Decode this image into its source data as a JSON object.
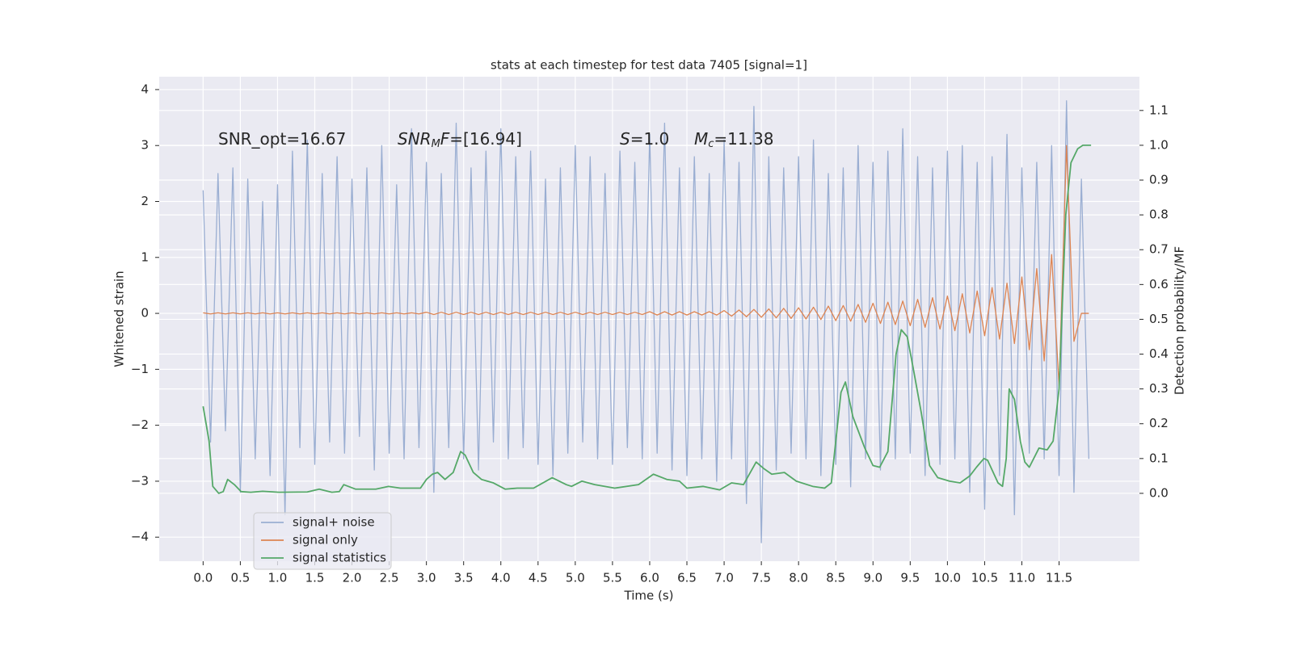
{
  "chart_data": {
    "type": "line",
    "title": "stats at each timestep for test data 7405 [signal=1]",
    "x_label": "Time (s)",
    "y_label": "Whitened strain",
    "y2_label": "Detection probability/MF",
    "annotations": [
      [
        "SNR_opt=16.67"
      ],
      [
        "SNR",
        "M",
        "F",
        "=[16.94]"
      ],
      [
        "S",
        "=1.0"
      ],
      [
        "M",
        "c",
        "=11.38"
      ]
    ],
    "x": [
      0.0,
      0.1,
      0.2,
      0.3,
      0.4,
      0.5,
      0.6,
      0.7,
      0.8,
      0.9,
      1.0,
      1.1,
      1.2,
      1.3,
      1.4,
      1.5,
      1.6,
      1.7,
      1.8,
      1.9,
      2.0,
      2.1,
      2.2,
      2.3,
      2.4,
      2.5,
      2.6,
      2.7,
      2.8,
      2.9,
      3.0,
      3.1,
      3.2,
      3.3,
      3.4,
      3.5,
      3.6,
      3.7,
      3.8,
      3.9,
      4.0,
      4.1,
      4.2,
      4.3,
      4.4,
      4.5,
      4.6,
      4.7,
      4.8,
      4.9,
      5.0,
      5.1,
      5.2,
      5.3,
      5.4,
      5.5,
      5.6,
      5.7,
      5.8,
      5.9,
      6.0,
      6.1,
      6.2,
      6.3,
      6.4,
      6.5,
      6.6,
      6.7,
      6.8,
      6.9,
      7.0,
      7.1,
      7.2,
      7.3,
      7.4,
      7.5,
      7.6,
      7.7,
      7.8,
      7.9,
      8.0,
      8.1,
      8.2,
      8.3,
      8.4,
      8.5,
      8.6,
      8.7,
      8.8,
      8.9,
      9.0,
      9.1,
      9.2,
      9.3,
      9.4,
      9.5,
      9.6,
      9.7,
      9.8,
      9.9,
      10.0,
      10.1,
      10.2,
      10.3,
      10.4,
      10.5,
      10.6,
      10.7,
      10.8,
      10.9,
      11.0,
      11.1,
      11.2,
      11.3,
      11.4,
      11.5,
      11.6,
      11.7,
      11.8,
      11.9
    ],
    "series": [
      {
        "name": "signal+ noise",
        "color": "#9aaed2",
        "values": [
          2.2,
          -2.3,
          2.5,
          -2.1,
          2.6,
          -3.2,
          2.4,
          -2.6,
          2.0,
          -2.9,
          2.3,
          -3.6,
          2.9,
          -2.4,
          3.1,
          -2.7,
          2.5,
          -2.3,
          2.8,
          -2.5,
          2.4,
          -2.2,
          2.6,
          -2.8,
          3.0,
          -2.5,
          2.3,
          -2.6,
          3.3,
          -2.4,
          2.7,
          -3.2,
          2.5,
          -2.4,
          3.4,
          -2.6,
          2.6,
          -2.8,
          2.9,
          -2.3,
          3.3,
          -2.6,
          2.8,
          -2.4,
          2.9,
          -2.7,
          2.4,
          -2.9,
          2.6,
          -2.5,
          3.0,
          -2.3,
          2.8,
          -2.6,
          2.5,
          -2.7,
          2.9,
          -2.4,
          2.7,
          -2.6,
          3.2,
          -2.5,
          3.4,
          -2.8,
          2.6,
          -2.9,
          2.8,
          -2.6,
          2.5,
          -3.0,
          3.1,
          -2.6,
          2.7,
          -3.4,
          3.7,
          -4.1,
          2.8,
          -2.8,
          2.6,
          -2.5,
          2.8,
          -2.6,
          3.1,
          -2.9,
          2.5,
          -2.7,
          2.6,
          -3.1,
          3.0,
          -2.6,
          2.7,
          -2.8,
          2.9,
          -2.6,
          3.3,
          -2.5,
          2.8,
          -2.9,
          2.6,
          -2.7,
          2.9,
          -2.6,
          3.0,
          -3.2,
          2.7,
          -3.5,
          2.8,
          -2.9,
          3.2,
          -3.6,
          2.6,
          -2.5,
          2.7,
          -2.6,
          3.0,
          -2.9,
          3.8,
          -3.2,
          2.4,
          -2.6
        ]
      },
      {
        "name": "signal only",
        "color": "#dd8452",
        "values": [
          0.01,
          -0.01,
          0.01,
          -0.01,
          0.01,
          -0.01,
          0.01,
          -0.01,
          0.01,
          -0.01,
          0.01,
          -0.01,
          0.01,
          -0.01,
          0.01,
          -0.01,
          0.01,
          -0.01,
          0.01,
          -0.01,
          0.01,
          -0.01,
          0.01,
          -0.01,
          0.01,
          -0.01,
          0.01,
          -0.01,
          0.01,
          -0.01,
          0.02,
          -0.02,
          0.02,
          -0.02,
          0.02,
          -0.02,
          0.02,
          -0.02,
          0.02,
          -0.02,
          0.02,
          -0.02,
          0.02,
          -0.02,
          0.02,
          -0.02,
          0.02,
          -0.02,
          0.02,
          -0.02,
          0.02,
          -0.02,
          0.02,
          -0.02,
          0.02,
          -0.02,
          0.02,
          -0.02,
          0.02,
          -0.02,
          0.03,
          -0.03,
          0.03,
          -0.03,
          0.03,
          -0.03,
          0.03,
          -0.03,
          0.03,
          -0.03,
          0.05,
          -0.05,
          0.06,
          -0.06,
          0.07,
          -0.07,
          0.08,
          -0.08,
          0.09,
          -0.09,
          0.1,
          -0.1,
          0.11,
          -0.11,
          0.13,
          -0.13,
          0.14,
          -0.14,
          0.16,
          -0.16,
          0.18,
          -0.18,
          0.2,
          -0.2,
          0.22,
          -0.22,
          0.25,
          -0.25,
          0.28,
          -0.28,
          0.31,
          -0.31,
          0.35,
          -0.35,
          0.4,
          -0.4,
          0.46,
          -0.46,
          0.54,
          -0.54,
          0.65,
          -0.65,
          0.8,
          -0.85,
          1.05,
          -1.3,
          3.0,
          -0.5,
          0.0,
          0.0
        ]
      },
      {
        "name": "signal statistics",
        "color": "#55a868",
        "axis": "y2",
        "x": [
          0.0,
          0.08,
          0.13,
          0.21,
          0.27,
          0.33,
          0.42,
          0.51,
          0.64,
          0.8,
          1.02,
          1.4,
          1.56,
          1.73,
          1.83,
          1.89,
          2.05,
          2.32,
          2.49,
          2.65,
          2.92,
          3.0,
          3.08,
          3.15,
          3.25,
          3.36,
          3.46,
          3.52,
          3.63,
          3.74,
          3.9,
          4.06,
          4.22,
          4.44,
          4.69,
          4.88,
          4.95,
          5.09,
          5.26,
          5.53,
          5.85,
          6.05,
          6.23,
          6.4,
          6.5,
          6.72,
          6.94,
          7.1,
          7.26,
          7.43,
          7.54,
          7.64,
          7.81,
          7.97,
          8.19,
          8.35,
          8.44,
          8.57,
          8.63,
          8.73,
          8.89,
          9.0,
          9.09,
          9.2,
          9.31,
          9.38,
          9.46,
          9.54,
          9.65,
          9.76,
          9.87,
          10.03,
          10.17,
          10.3,
          10.39,
          10.49,
          10.54,
          10.68,
          10.74,
          10.79,
          10.83,
          10.9,
          10.98,
          11.04,
          11.1,
          11.23,
          11.34,
          11.42,
          11.5,
          11.59,
          11.66,
          11.75,
          11.82,
          11.93
        ],
        "values": [
          0.25,
          0.15,
          0.02,
          0.0,
          0.005,
          0.04,
          0.025,
          0.005,
          0.003,
          0.006,
          0.003,
          0.004,
          0.012,
          0.003,
          0.005,
          0.025,
          0.012,
          0.012,
          0.02,
          0.015,
          0.015,
          0.04,
          0.055,
          0.06,
          0.04,
          0.06,
          0.12,
          0.11,
          0.06,
          0.04,
          0.03,
          0.012,
          0.015,
          0.015,
          0.045,
          0.025,
          0.02,
          0.035,
          0.025,
          0.015,
          0.025,
          0.055,
          0.04,
          0.035,
          0.015,
          0.02,
          0.01,
          0.03,
          0.025,
          0.09,
          0.07,
          0.055,
          0.06,
          0.035,
          0.02,
          0.015,
          0.03,
          0.29,
          0.32,
          0.22,
          0.13,
          0.08,
          0.075,
          0.12,
          0.4,
          0.47,
          0.45,
          0.36,
          0.23,
          0.08,
          0.045,
          0.035,
          0.03,
          0.05,
          0.075,
          0.1,
          0.095,
          0.03,
          0.02,
          0.1,
          0.3,
          0.27,
          0.15,
          0.09,
          0.075,
          0.13,
          0.125,
          0.15,
          0.3,
          0.8,
          0.95,
          0.99,
          1.0,
          1.0
        ]
      }
    ],
    "xlim": [
      -0.59,
      12.58
    ],
    "ylim": [
      -4.43,
      4.23
    ],
    "y2lim": [
      -0.195,
      1.197
    ],
    "xticks": [
      {
        "value": 0,
        "label": "0.0"
      },
      0.5,
      {
        "value": 1,
        "label": "1.0"
      },
      1.5,
      {
        "value": 2,
        "label": "2.0"
      },
      2.5,
      {
        "value": 3,
        "label": "3.0"
      },
      3.5,
      {
        "value": 4,
        "label": "4.0"
      },
      4.5,
      {
        "value": 5,
        "label": "5.0"
      },
      5.5,
      {
        "value": 6,
        "label": "6.0"
      },
      6.5,
      {
        "value": 7,
        "label": "7.0"
      },
      7.5,
      {
        "value": 8,
        "label": "8.0"
      },
      8.5,
      {
        "value": 9,
        "label": "9.0"
      },
      9.5,
      {
        "value": 10,
        "label": "10.0"
      },
      10.5,
      {
        "value": 11,
        "label": "11.0"
      },
      11.5
    ],
    "yticks": [
      {
        "value": -4,
        "label": "−4"
      },
      {
        "value": -3,
        "label": "−3"
      },
      {
        "value": -2,
        "label": "−2"
      },
      {
        "value": -1,
        "label": "−1"
      },
      0,
      1,
      2,
      3,
      4
    ],
    "y2ticks": [
      {
        "value": 0,
        "label": "0.0"
      },
      0.1,
      0.2,
      0.3,
      0.4,
      0.5,
      0.6,
      0.7,
      0.8,
      0.9,
      {
        "value": 1,
        "label": "1.0"
      },
      1.1
    ],
    "grid": true,
    "legend": "lower left",
    "background": "#eaeaf2"
  }
}
